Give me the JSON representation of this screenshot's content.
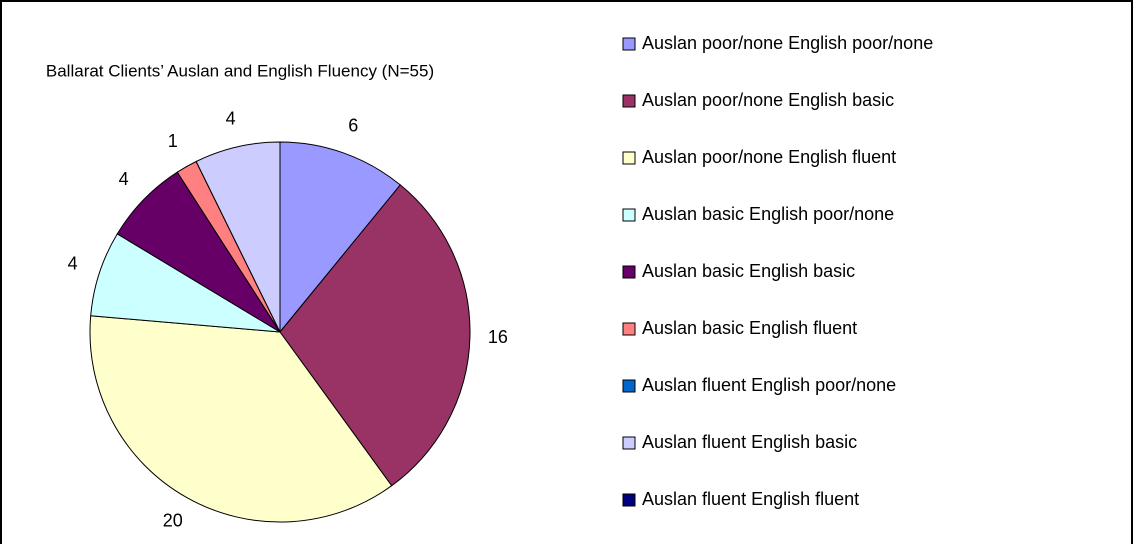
{
  "chart_data": {
    "type": "pie",
    "title": "Ballarat Clients’ Auslan and English Fluency (N=55)",
    "categories": [
      "Auslan poor/none English poor/none",
      "Auslan poor/none English basic",
      "Auslan poor/none English fluent",
      "Auslan basic English poor/none",
      "Auslan basic English basic",
      "Auslan basic English fluent",
      "Auslan fluent English poor/none",
      "Auslan fluent English basic",
      "Auslan fluent English fluent"
    ],
    "values": [
      6,
      16,
      20,
      4,
      4,
      1,
      0,
      4,
      0
    ],
    "colors": [
      "#9999ff",
      "#993366",
      "#ffffcc",
      "#ccffff",
      "#660066",
      "#ff8080",
      "#0066cc",
      "#ccccff",
      "#000080"
    ],
    "legend": "right"
  }
}
